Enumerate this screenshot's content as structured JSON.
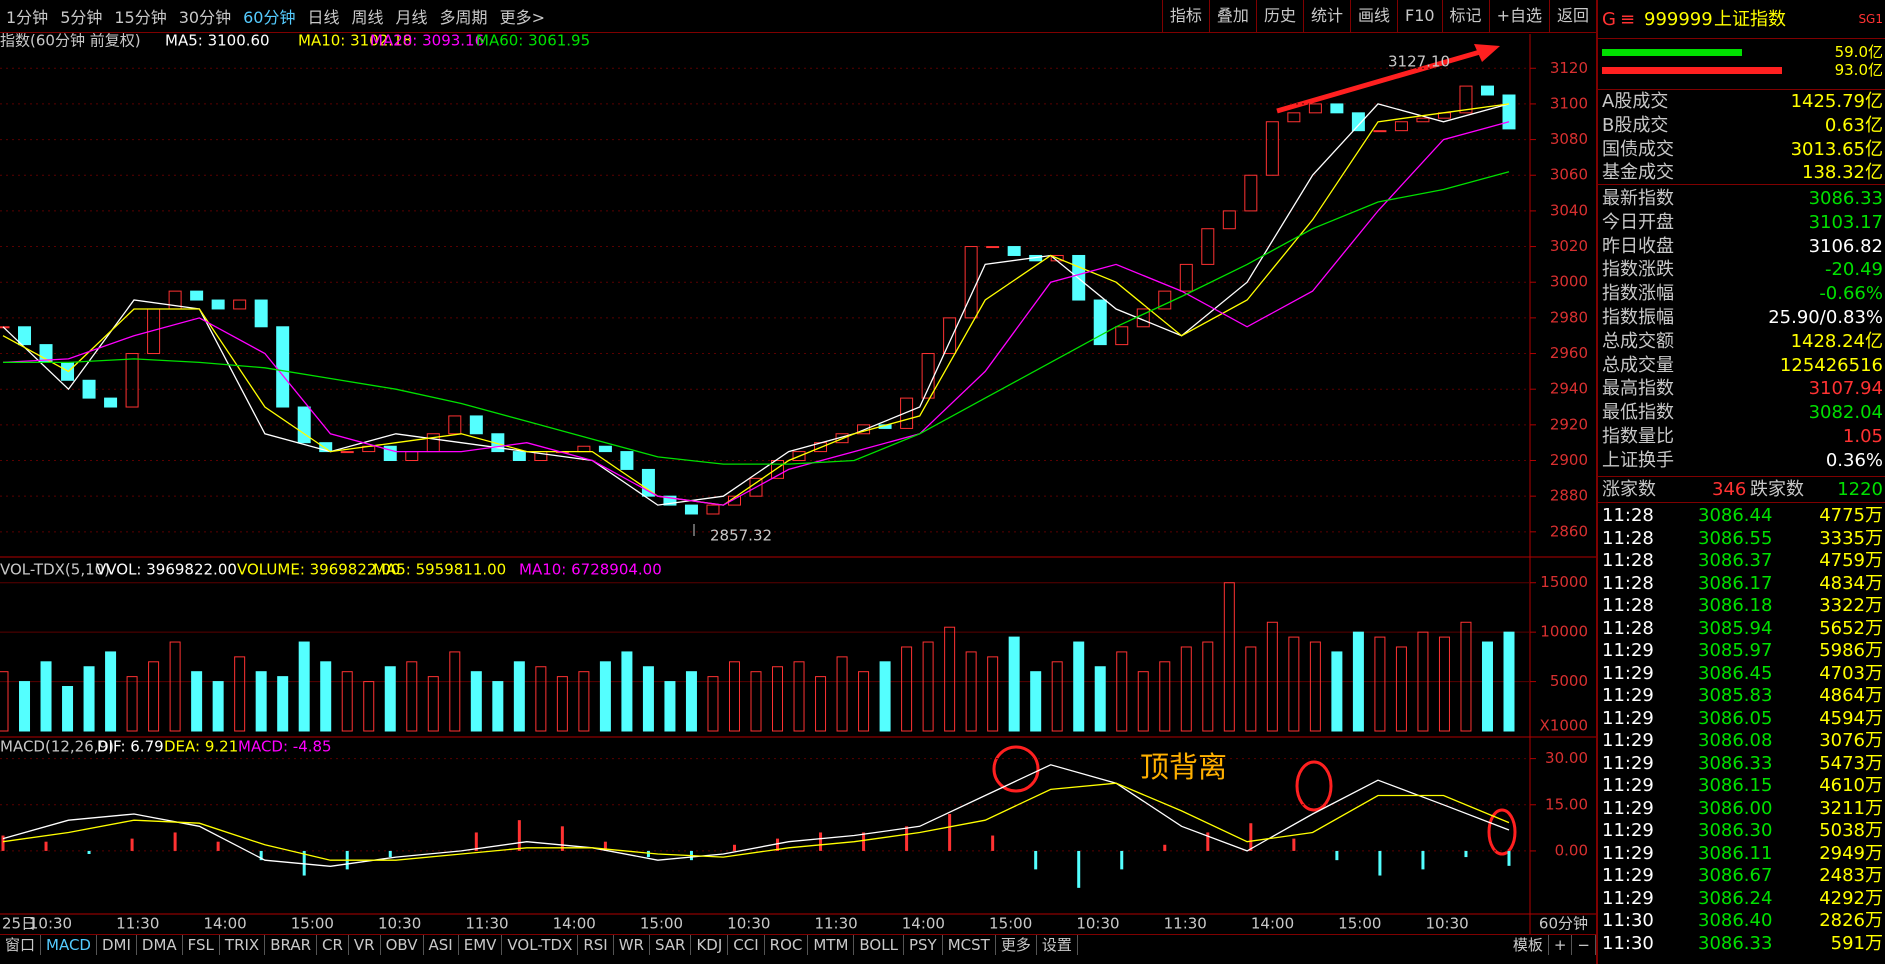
{
  "toolbar": {
    "periods": [
      "1分钟",
      "5分钟",
      "15分钟",
      "30分钟",
      "60分钟",
      "日线",
      "周线",
      "月线",
      "多周期",
      "更多>"
    ],
    "tools": [
      "指标",
      "叠加",
      "历史",
      "统计",
      "画线",
      "F10",
      "标记",
      "+自选",
      "返回"
    ]
  },
  "chart_data": [
    {
      "type": "candlestick",
      "title": "指数(60分钟 前复权)",
      "annotations": [
        "3127.10",
        "2857.32"
      ],
      "values": [
        2975,
        2965,
        2955,
        2945,
        2935,
        2930,
        2960,
        2985,
        2995,
        2990,
        2985,
        2990,
        2975,
        2930,
        2910,
        2905,
        2905,
        2908,
        2900,
        2905,
        2915,
        2925,
        2915,
        2905,
        2900,
        2905,
        2905,
        2908,
        2905,
        2895,
        2880,
        2875,
        2870,
        2875,
        2880,
        2890,
        2900,
        2905,
        2910,
        2915,
        2920,
        2918,
        2935,
        2960,
        2980,
        3020,
        3020,
        3015,
        3012,
        3015,
        2990,
        2965,
        2975,
        2985,
        2995,
        3010,
        3030,
        3040,
        3060,
        3090,
        3095,
        3100,
        3095,
        3085,
        3085,
        3090,
        3092,
        3095,
        3110,
        3105,
        3086
      ],
      "up_color": "#ff3232",
      "down_color": "#54ffff",
      "series": [
        {
          "name": "MA5: 3100.60",
          "color": "#ffffff",
          "values": [
            2975,
            2940,
            2990,
            2985,
            2915,
            2905,
            2915,
            2910,
            2905,
            2900,
            2875,
            2880,
            2905,
            2915,
            2930,
            3010,
            3015,
            2985,
            2970,
            3000,
            3060,
            3100,
            3090,
            3100
          ]
        },
        {
          "name": "MA10: 3102.18",
          "color": "#ffff00",
          "values": [
            2970,
            2950,
            2985,
            2985,
            2930,
            2905,
            2910,
            2915,
            2905,
            2905,
            2880,
            2875,
            2900,
            2915,
            2925,
            2990,
            3015,
            3000,
            2970,
            2990,
            3035,
            3090,
            3095,
            3100
          ]
        },
        {
          "name": "MA20: 3093.16",
          "color": "#ff00ff",
          "values": [
            2955,
            2957,
            2970,
            2980,
            2960,
            2915,
            2905,
            2905,
            2910,
            2900,
            2880,
            2875,
            2895,
            2905,
            2915,
            2950,
            3000,
            3010,
            2995,
            2975,
            2995,
            3040,
            3080,
            3090
          ]
        },
        {
          "name": "MA60: 3061.95",
          "color": "#00e000",
          "values": [
            2955,
            2955,
            2957,
            2955,
            2952,
            2946,
            2940,
            2932,
            2922,
            2912,
            2902,
            2898,
            2898,
            2900,
            2915,
            2935,
            2955,
            2975,
            2992,
            3010,
            3030,
            3045,
            3052,
            3062
          ]
        }
      ],
      "ylim": [
        2847,
        3128
      ],
      "yticks": [
        2860,
        2880,
        2900,
        2920,
        2940,
        2960,
        2980,
        3000,
        3020,
        3040,
        3060,
        3080,
        3100,
        3120
      ],
      "grid": true
    },
    {
      "type": "bar",
      "title": "VOL-TDX(5,10)",
      "unit_label": "X1000",
      "series": [
        {
          "name": "VVOL: 3969822.00",
          "color": "#ffffff"
        },
        {
          "name": "VOLUME: 3969822.00",
          "color": "#ffff00"
        },
        {
          "name": "MA5: 5959811.00",
          "color": "#ffff00"
        },
        {
          "name": "MA10: 6728904.00",
          "color": "#ff00ff"
        }
      ],
      "values": [
        6000,
        5000,
        7000,
        4500,
        6500,
        8000,
        5500,
        7000,
        9000,
        6000,
        5000,
        7500,
        6000,
        5500,
        9000,
        7000,
        6000,
        5000,
        6500,
        7000,
        5500,
        8000,
        6000,
        5000,
        7000,
        6500,
        5500,
        6000,
        7000,
        8000,
        6500,
        5000,
        6000,
        5500,
        7000,
        6000,
        6500,
        7000,
        5500,
        7500,
        6000,
        7000,
        8500,
        9000,
        10500,
        8000,
        7500,
        9500,
        6000,
        7000,
        9000,
        6500,
        8000,
        6000,
        7000,
        8500,
        9000,
        15000,
        8500,
        11000,
        9500,
        9000,
        8000,
        10000,
        9500,
        8500,
        10000,
        9500,
        11000,
        9000,
        10000
      ],
      "ylim": [
        0,
        17400
      ],
      "yticks": [
        5000,
        10000,
        15000
      ]
    },
    {
      "type": "macd",
      "title": "MACD(12,26,9)",
      "annotations": [
        "顶背离"
      ],
      "series": [
        {
          "name": "DIF: 6.79",
          "color": "#ffffff",
          "values": [
            4,
            10,
            12,
            8,
            -3,
            -5,
            -2,
            0,
            3,
            1,
            -3,
            -1,
            3,
            5,
            8,
            18,
            28,
            22,
            8,
            0,
            12,
            23,
            15,
            6.79
          ]
        },
        {
          "name": "DEA: 9.21",
          "color": "#ffff00",
          "values": [
            3,
            6,
            10,
            9,
            2,
            -3,
            -3,
            -1,
            1,
            1,
            -1,
            -2,
            1,
            3,
            6,
            10,
            20,
            22,
            13,
            3,
            6,
            18,
            18,
            9.21
          ]
        }
      ],
      "histogram": {
        "name": "MACD: -4.85",
        "color": "#ff00ff",
        "values": [
          5,
          3,
          -1,
          4,
          6,
          3,
          -3,
          -8,
          -6,
          -2,
          0,
          6,
          10,
          8,
          3,
          -2,
          -3,
          2,
          4,
          6,
          6,
          8,
          12,
          5,
          -6,
          -12,
          -6,
          2,
          6,
          9,
          4,
          -3,
          -8,
          -6,
          -2,
          -4.85
        ]
      },
      "ylim": [
        -20.5,
        35.4
      ],
      "yticks": [
        {
          "value": 0,
          "label": "0.00"
        },
        {
          "value": 15,
          "label": "15.00"
        },
        {
          "value": 30,
          "label": "30.00"
        }
      ]
    }
  ],
  "x_axis": {
    "labels": [
      "25日",
      "10:30",
      "11:30",
      "14:00",
      "15:00",
      "10:30",
      "11:30",
      "14:00",
      "15:00",
      "10:30",
      "11:30",
      "14:00",
      "15:00",
      "10:30",
      "11:30",
      "14:00",
      "15:00",
      "10:30"
    ],
    "period": "60分钟"
  },
  "bottom_tabs": {
    "indicators": [
      "窗口",
      "MACD",
      "DMI",
      "DMA",
      "FSL",
      "TRIX",
      "BRAR",
      "CR",
      "VR",
      "OBV",
      "ASI",
      "EMV",
      "VOL-TDX",
      "RSI",
      "WR",
      "SAR",
      "KDJ",
      "CCI",
      "ROC",
      "MTM",
      "BOLL",
      "PSY",
      "MCST",
      "更多",
      "设置"
    ],
    "right": [
      "模板",
      "+",
      "−"
    ]
  },
  "side_panel": {
    "prefix": "G",
    "menu": "≡",
    "code": "999999",
    "name": "上证指数",
    "badge": "SG1",
    "bars": [
      "59.0亿",
      "93.0亿"
    ],
    "turnover": [
      [
        "A股成交",
        "1425.79亿"
      ],
      [
        "B股成交",
        "0.63亿"
      ],
      [
        "国债成交",
        "3013.65亿"
      ],
      [
        "基金成交",
        "138.32亿"
      ]
    ],
    "stats": [
      {
        "label": "最新指数",
        "value": "3086.33",
        "color": "#00e000"
      },
      {
        "label": "今日开盘",
        "value": "3103.17",
        "color": "#00e000"
      },
      {
        "label": "昨日收盘",
        "value": "3106.82",
        "color": "#ffffff"
      },
      {
        "label": "指数涨跌",
        "value": "-20.49",
        "color": "#00e000"
      },
      {
        "label": "指数涨幅",
        "value": "-0.66%",
        "color": "#00e000"
      },
      {
        "label": "指数振幅",
        "value": "25.90/0.83%",
        "color": "#ffffff"
      },
      {
        "label": "总成交额",
        "value": "1428.24亿",
        "color": "#ffff00"
      },
      {
        "label": "总成交量",
        "value": "125426516",
        "color": "#ffff00"
      },
      {
        "label": "最高指数",
        "value": "3107.94",
        "color": "#ff3232"
      },
      {
        "label": "最低指数",
        "value": "3082.04",
        "color": "#00e000"
      },
      {
        "label": "指数量比",
        "value": "1.05",
        "color": "#ff3232"
      },
      {
        "label": "上证换手",
        "value": "0.36%",
        "color": "#ffffff"
      }
    ],
    "breadth": {
      "up_label": "涨家数",
      "up": "346",
      "down_label": "跌家数",
      "down": "1220"
    },
    "ticks": [
      [
        "11:28",
        "3086.44",
        "4775万"
      ],
      [
        "11:28",
        "3086.55",
        "3335万"
      ],
      [
        "11:28",
        "3086.37",
        "4759万"
      ],
      [
        "11:28",
        "3086.17",
        "4834万"
      ],
      [
        "11:28",
        "3086.18",
        "3322万"
      ],
      [
        "11:28",
        "3085.94",
        "5652万"
      ],
      [
        "11:29",
        "3085.97",
        "5986万"
      ],
      [
        "11:29",
        "3086.45",
        "4703万"
      ],
      [
        "11:29",
        "3085.83",
        "4864万"
      ],
      [
        "11:29",
        "3086.05",
        "4594万"
      ],
      [
        "11:29",
        "3086.08",
        "3076万"
      ],
      [
        "11:29",
        "3086.33",
        "5473万"
      ],
      [
        "11:29",
        "3086.15",
        "4610万"
      ],
      [
        "11:29",
        "3086.00",
        "3211万"
      ],
      [
        "11:29",
        "3086.30",
        "5038万"
      ],
      [
        "11:29",
        "3086.11",
        "2949万"
      ],
      [
        "11:29",
        "3086.67",
        "2483万"
      ],
      [
        "11:29",
        "3086.24",
        "4292万"
      ],
      [
        "11:30",
        "3086.40",
        "2826万"
      ],
      [
        "11:30",
        "3086.33",
        "591万"
      ]
    ]
  }
}
